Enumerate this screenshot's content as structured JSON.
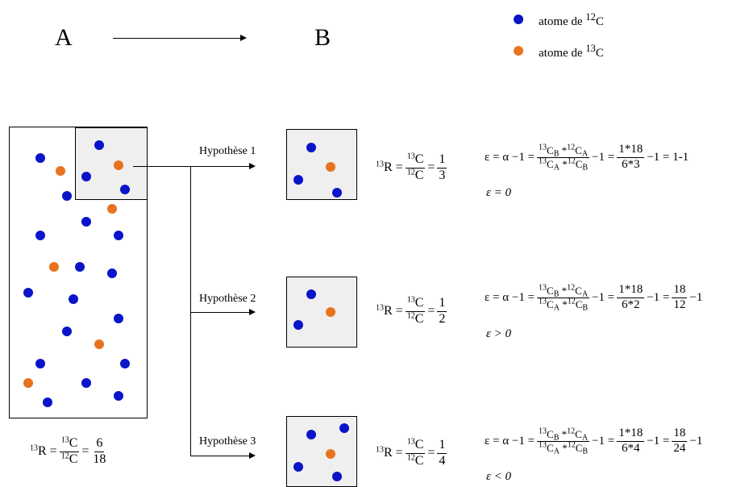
{
  "header": {
    "label_a": "A",
    "label_b": "B"
  },
  "legend": {
    "c12": "atome de <sup>12</sup>C",
    "c13": "atome de <sup>13</sup>C",
    "c12_color": "#0a14c8",
    "c13_color": "#e8731e"
  },
  "hypotheses": [
    {
      "label": "Hypothèse 1",
      "ratio_num": "1",
      "ratio_den": "3",
      "frac_num": "1*18",
      "frac_den": "6*3",
      "tail": "−1 = 1-1",
      "conclusion": "ε = 0"
    },
    {
      "label": "Hypothèse 2",
      "ratio_num": "1",
      "ratio_den": "2",
      "frac_num": "1*18",
      "frac_den": "6*2",
      "tail_num": "18",
      "tail_den": "12",
      "conclusion": "ε > 0"
    },
    {
      "label": "Hypothèse 3",
      "ratio_num": "1",
      "ratio_den": "4",
      "frac_num": "1*18",
      "frac_den": "6*4",
      "tail_num": "18",
      "tail_den": "24",
      "conclusion": "ε < 0"
    }
  ],
  "global_ratio": {
    "num": "6",
    "den": "18"
  }
}
